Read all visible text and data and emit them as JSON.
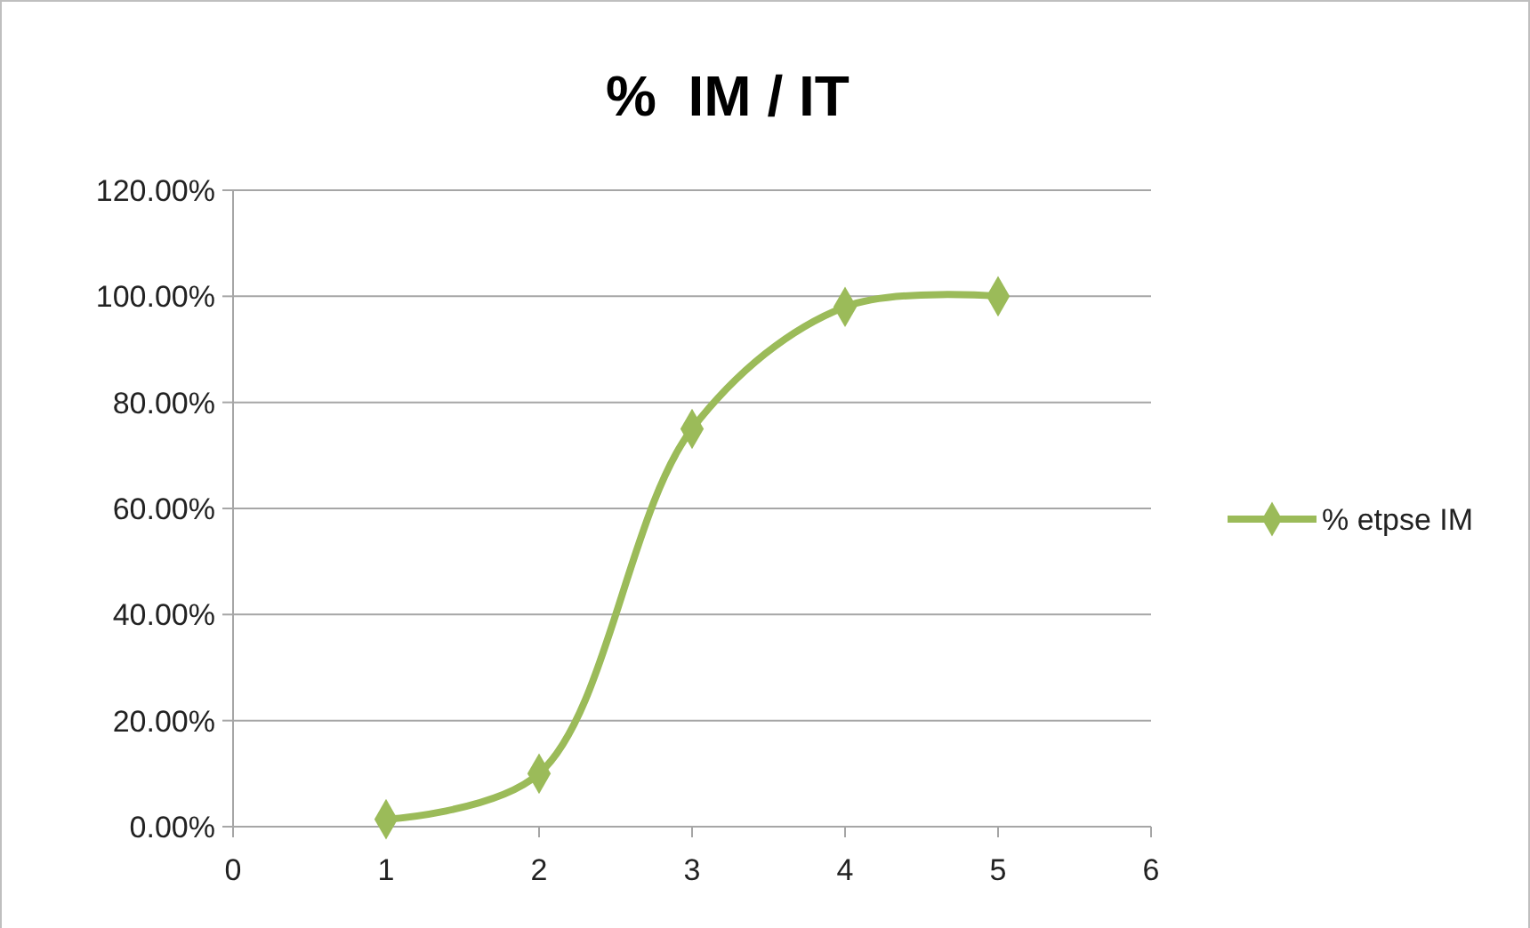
{
  "chart_data": {
    "type": "line",
    "title": "%  IM / IT",
    "x": [
      1,
      2,
      3,
      4,
      5
    ],
    "series": [
      {
        "name": "% etpse IM",
        "color": "#9bbb59",
        "values": [
          1.4,
          10,
          75,
          98,
          100
        ]
      }
    ],
    "xlim": [
      0,
      6
    ],
    "xticks": [
      0,
      1,
      2,
      3,
      4,
      5,
      6
    ],
    "ylim": [
      0,
      120
    ],
    "yticks": [
      {
        "value": 0,
        "label": "0.00%"
      },
      {
        "value": 20,
        "label": "20.00%"
      },
      {
        "value": 40,
        "label": "40.00%"
      },
      {
        "value": 60,
        "label": "60.00%"
      },
      {
        "value": 80,
        "label": "80.00%"
      },
      {
        "value": 100,
        "label": "100.00%"
      },
      {
        "value": 120,
        "label": "120.00%"
      }
    ],
    "grid": "y",
    "legend": "right",
    "marker": "diamond",
    "line_style": "solid"
  }
}
